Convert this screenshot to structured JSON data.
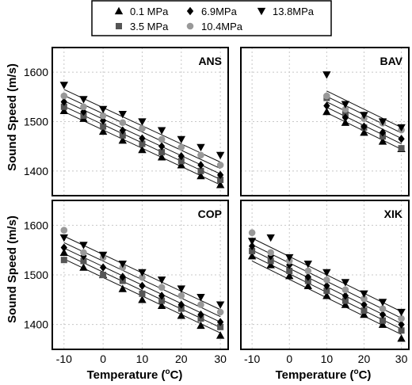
{
  "chart_data": {
    "type": "scatter",
    "xlabel": "Temperature (",
    "xlabel_sup": "o",
    "xlabel_tail": "C)",
    "ylabel": "Sound Speed (m/s)",
    "xlim": [
      -13,
      32
    ],
    "ylim": [
      1350,
      1650
    ],
    "xticks": [
      -10,
      0,
      10,
      20,
      30
    ],
    "yticks": [
      1400,
      1500,
      1600
    ],
    "legend": {
      "placement": "top-center",
      "entries": [
        {
          "label": "0.1 MPa",
          "marker": "triangle-up",
          "color": "#000000"
        },
        {
          "label": "6.9MPa",
          "marker": "diamond",
          "color": "#000000"
        },
        {
          "label": "13.8MPa",
          "marker": "triangle-down",
          "color": "#000000"
        },
        {
          "label": "3.5 MPa",
          "marker": "square",
          "color": "#555555"
        },
        {
          "label": "10.4MPa",
          "marker": "circle",
          "color": "#999999"
        }
      ]
    },
    "panels": [
      {
        "title": "ANS",
        "fits": [
          {
            "series": 0,
            "x": [
              -10,
              30
            ],
            "y": [
              1520,
              1372
            ]
          },
          {
            "series": 1,
            "x": [
              -10,
              30
            ],
            "y": [
              1531,
              1383
            ]
          },
          {
            "series": 2,
            "x": [
              -10,
              30
            ],
            "y": [
              1542,
              1394
            ]
          },
          {
            "series": 3,
            "x": [
              -10,
              30
            ],
            "y": [
              1553,
              1405
            ]
          },
          {
            "series": 4,
            "x": [
              -10,
              30
            ],
            "y": [
              1565,
              1418
            ]
          }
        ],
        "points": [
          {
            "series": 0,
            "x": [
              -10,
              -5,
              0,
              5,
              10,
              15,
              20,
              25,
              30
            ],
            "y": [
              1522,
              1506,
              1480,
              1462,
              1443,
              1428,
              1412,
              1390,
              1372
            ]
          },
          {
            "series": 3,
            "x": [
              -10,
              -5,
              0,
              5,
              10,
              15,
              20,
              25,
              30
            ],
            "y": [
              1530,
              1512,
              1490,
              1472,
              1455,
              1438,
              1420,
              1400,
              1382
            ]
          },
          {
            "series": 1,
            "x": [
              -10,
              -5,
              0,
              5,
              10,
              15,
              20,
              25,
              30
            ],
            "y": [
              1540,
              1520,
              1502,
              1482,
              1466,
              1450,
              1430,
              1412,
              1392
            ]
          },
          {
            "series": 4,
            "x": [
              -10,
              -5,
              0,
              5,
              10,
              15,
              20,
              25,
              30
            ],
            "y": [
              1552,
              1530,
              1512,
              1498,
              1486,
              1464,
              1448,
              1432,
              1412
            ]
          },
          {
            "series": 2,
            "x": [
              -10,
              -5,
              0,
              5,
              10,
              15,
              20,
              25,
              30
            ],
            "y": [
              1574,
              1545,
              1525,
              1515,
              1500,
              1482,
              1464,
              1448,
              1432
            ]
          }
        ]
      },
      {
        "title": "BAV",
        "fits": [
          {
            "series": 0,
            "x": [
              10,
              30
            ],
            "y": [
              1518,
              1444
            ]
          },
          {
            "series": 1,
            "x": [
              10,
              30
            ],
            "y": [
              1529,
              1455
            ]
          },
          {
            "series": 2,
            "x": [
              10,
              30
            ],
            "y": [
              1540,
              1466
            ]
          },
          {
            "series": 3,
            "x": [
              10,
              30
            ],
            "y": [
              1551,
              1477
            ]
          },
          {
            "series": 4,
            "x": [
              10,
              30
            ],
            "y": [
              1562,
              1488
            ]
          }
        ],
        "points": [
          {
            "series": 0,
            "x": [
              10,
              15,
              20,
              25,
              30
            ],
            "y": [
              1520,
              1498,
              1478,
              1460,
              1445
            ]
          },
          {
            "series": 3,
            "x": [
              10,
              15,
              20,
              25,
              30
            ],
            "y": [
              1548,
              1515,
              1488,
              1470,
              1446
            ]
          },
          {
            "series": 1,
            "x": [
              10,
              15,
              20,
              25,
              30
            ],
            "y": [
              1532,
              1508,
              1490,
              1478,
              1465
            ]
          },
          {
            "series": 4,
            "x": [
              10,
              15,
              20,
              25,
              30
            ],
            "y": [
              1552,
              1525,
              1506,
              1497,
              1483
            ]
          },
          {
            "series": 2,
            "x": [
              10,
              15,
              20,
              25,
              30
            ],
            "y": [
              1595,
              1535,
              1513,
              1500,
              1488
            ]
          }
        ]
      },
      {
        "title": "COP",
        "fits": [
          {
            "series": 0,
            "x": [
              -10,
              30
            ],
            "y": [
              1532,
              1383
            ]
          },
          {
            "series": 1,
            "x": [
              -10,
              30
            ],
            "y": [
              1543,
              1394
            ]
          },
          {
            "series": 2,
            "x": [
              -10,
              30
            ],
            "y": [
              1554,
              1405
            ]
          },
          {
            "series": 3,
            "x": [
              -10,
              30
            ],
            "y": [
              1565,
              1416
            ]
          },
          {
            "series": 4,
            "x": [
              -10,
              30
            ],
            "y": [
              1578,
              1430
            ]
          }
        ],
        "points": [
          {
            "series": 0,
            "x": [
              -10,
              -5,
              0,
              5,
              10,
              15,
              20,
              25,
              30
            ],
            "y": [
              1545,
              1515,
              1500,
              1472,
              1450,
              1438,
              1418,
              1398,
              1378
            ]
          },
          {
            "series": 3,
            "x": [
              -10,
              -5,
              0,
              5,
              10,
              15,
              20,
              25,
              30
            ],
            "y": [
              1530,
              1528,
              1500,
              1488,
              1462,
              1448,
              1432,
              1412,
              1395
            ]
          },
          {
            "series": 1,
            "x": [
              -10,
              -5,
              0,
              5,
              10,
              15,
              20,
              25,
              30
            ],
            "y": [
              1555,
              1538,
              1515,
              1496,
              1478,
              1458,
              1440,
              1420,
              1405
            ]
          },
          {
            "series": 4,
            "x": [
              -10,
              -5,
              0,
              5,
              10,
              15,
              20,
              25,
              30
            ],
            "y": [
              1590,
              1545,
              1535,
              1515,
              1495,
              1475,
              1458,
              1440,
              1425
            ]
          },
          {
            "series": 2,
            "x": [
              -10,
              -5,
              0,
              5,
              10,
              15,
              20,
              25,
              30
            ],
            "y": [
              1575,
              1560,
              1540,
              1522,
              1505,
              1490,
              1472,
              1455,
              1440
            ]
          }
        ]
      },
      {
        "title": "XIK",
        "fits": [
          {
            "series": 0,
            "x": [
              -10,
              30
            ],
            "y": [
              1528,
              1380
            ]
          },
          {
            "series": 1,
            "x": [
              -10,
              30
            ],
            "y": [
              1539,
              1391
            ]
          },
          {
            "series": 2,
            "x": [
              -10,
              30
            ],
            "y": [
              1550,
              1402
            ]
          },
          {
            "series": 3,
            "x": [
              -10,
              30
            ],
            "y": [
              1561,
              1413
            ]
          },
          {
            "series": 4,
            "x": [
              -10,
              30
            ],
            "y": [
              1574,
              1426
            ]
          }
        ],
        "points": [
          {
            "series": 0,
            "x": [
              -10,
              -5,
              0,
              5,
              10,
              15,
              20,
              25,
              30
            ],
            "y": [
              1538,
              1520,
              1498,
              1478,
              1458,
              1440,
              1420,
              1400,
              1372
            ]
          },
          {
            "series": 3,
            "x": [
              -10,
              -5,
              0,
              5,
              10,
              15,
              20,
              25,
              30
            ],
            "y": [
              1548,
              1528,
              1508,
              1488,
              1468,
              1448,
              1428,
              1408,
              1388
            ]
          },
          {
            "series": 1,
            "x": [
              -10,
              -5,
              0,
              5,
              10,
              15,
              20,
              25,
              30
            ],
            "y": [
              1558,
              1538,
              1520,
              1496,
              1478,
              1458,
              1440,
              1420,
              1400
            ]
          },
          {
            "series": 4,
            "x": [
              -10,
              -5,
              0,
              5,
              10,
              15,
              20,
              25,
              30
            ],
            "y": [
              1585,
              1545,
              1528,
              1508,
              1490,
              1470,
              1452,
              1432,
              1412
            ]
          },
          {
            "series": 2,
            "x": [
              -10,
              -5,
              0,
              5,
              10,
              15,
              20,
              25,
              30
            ],
            "y": [
              1568,
              1575,
              1535,
              1522,
              1505,
              1485,
              1462,
              1445,
              1425
            ]
          }
        ]
      }
    ]
  }
}
